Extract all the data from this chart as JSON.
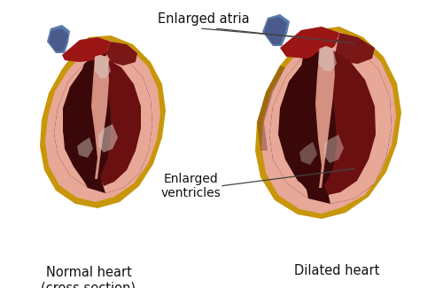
{
  "background_color": "#ffffff",
  "label_enlarged_atria": "Enlarged atria",
  "label_enlarged_ventricles": "Enlarged\nventricles",
  "label_normal": "Normal heart\n(cross section)",
  "label_dilated": "Dilated heart",
  "label_fontsize": 10.5,
  "fig_width": 5.0,
  "fig_height": 3.25,
  "dpi": 100,
  "colors": {
    "gold_rim": "#c8960a",
    "gold_outer": "#b8860b",
    "pink_wall": "#e8a898",
    "pink_wall2": "#d49080",
    "dark_red_chamber": "#6b1010",
    "very_dark_chamber": "#3a0808",
    "bright_red_atria": "#9b1515",
    "med_red": "#7a1818",
    "septum_pink": "#c87870",
    "blue_vessel": "#5a7aaa",
    "blue_vessel2": "#4a5a8a",
    "white_tissue": "#d8c8c0",
    "white_tissue2": "#c8b8b0",
    "gray_tissue": "#908880",
    "outer_bg": "#ffffff",
    "heart_outline": "#7a4010"
  },
  "annotation_color": "#111111",
  "line_color": "#444444"
}
